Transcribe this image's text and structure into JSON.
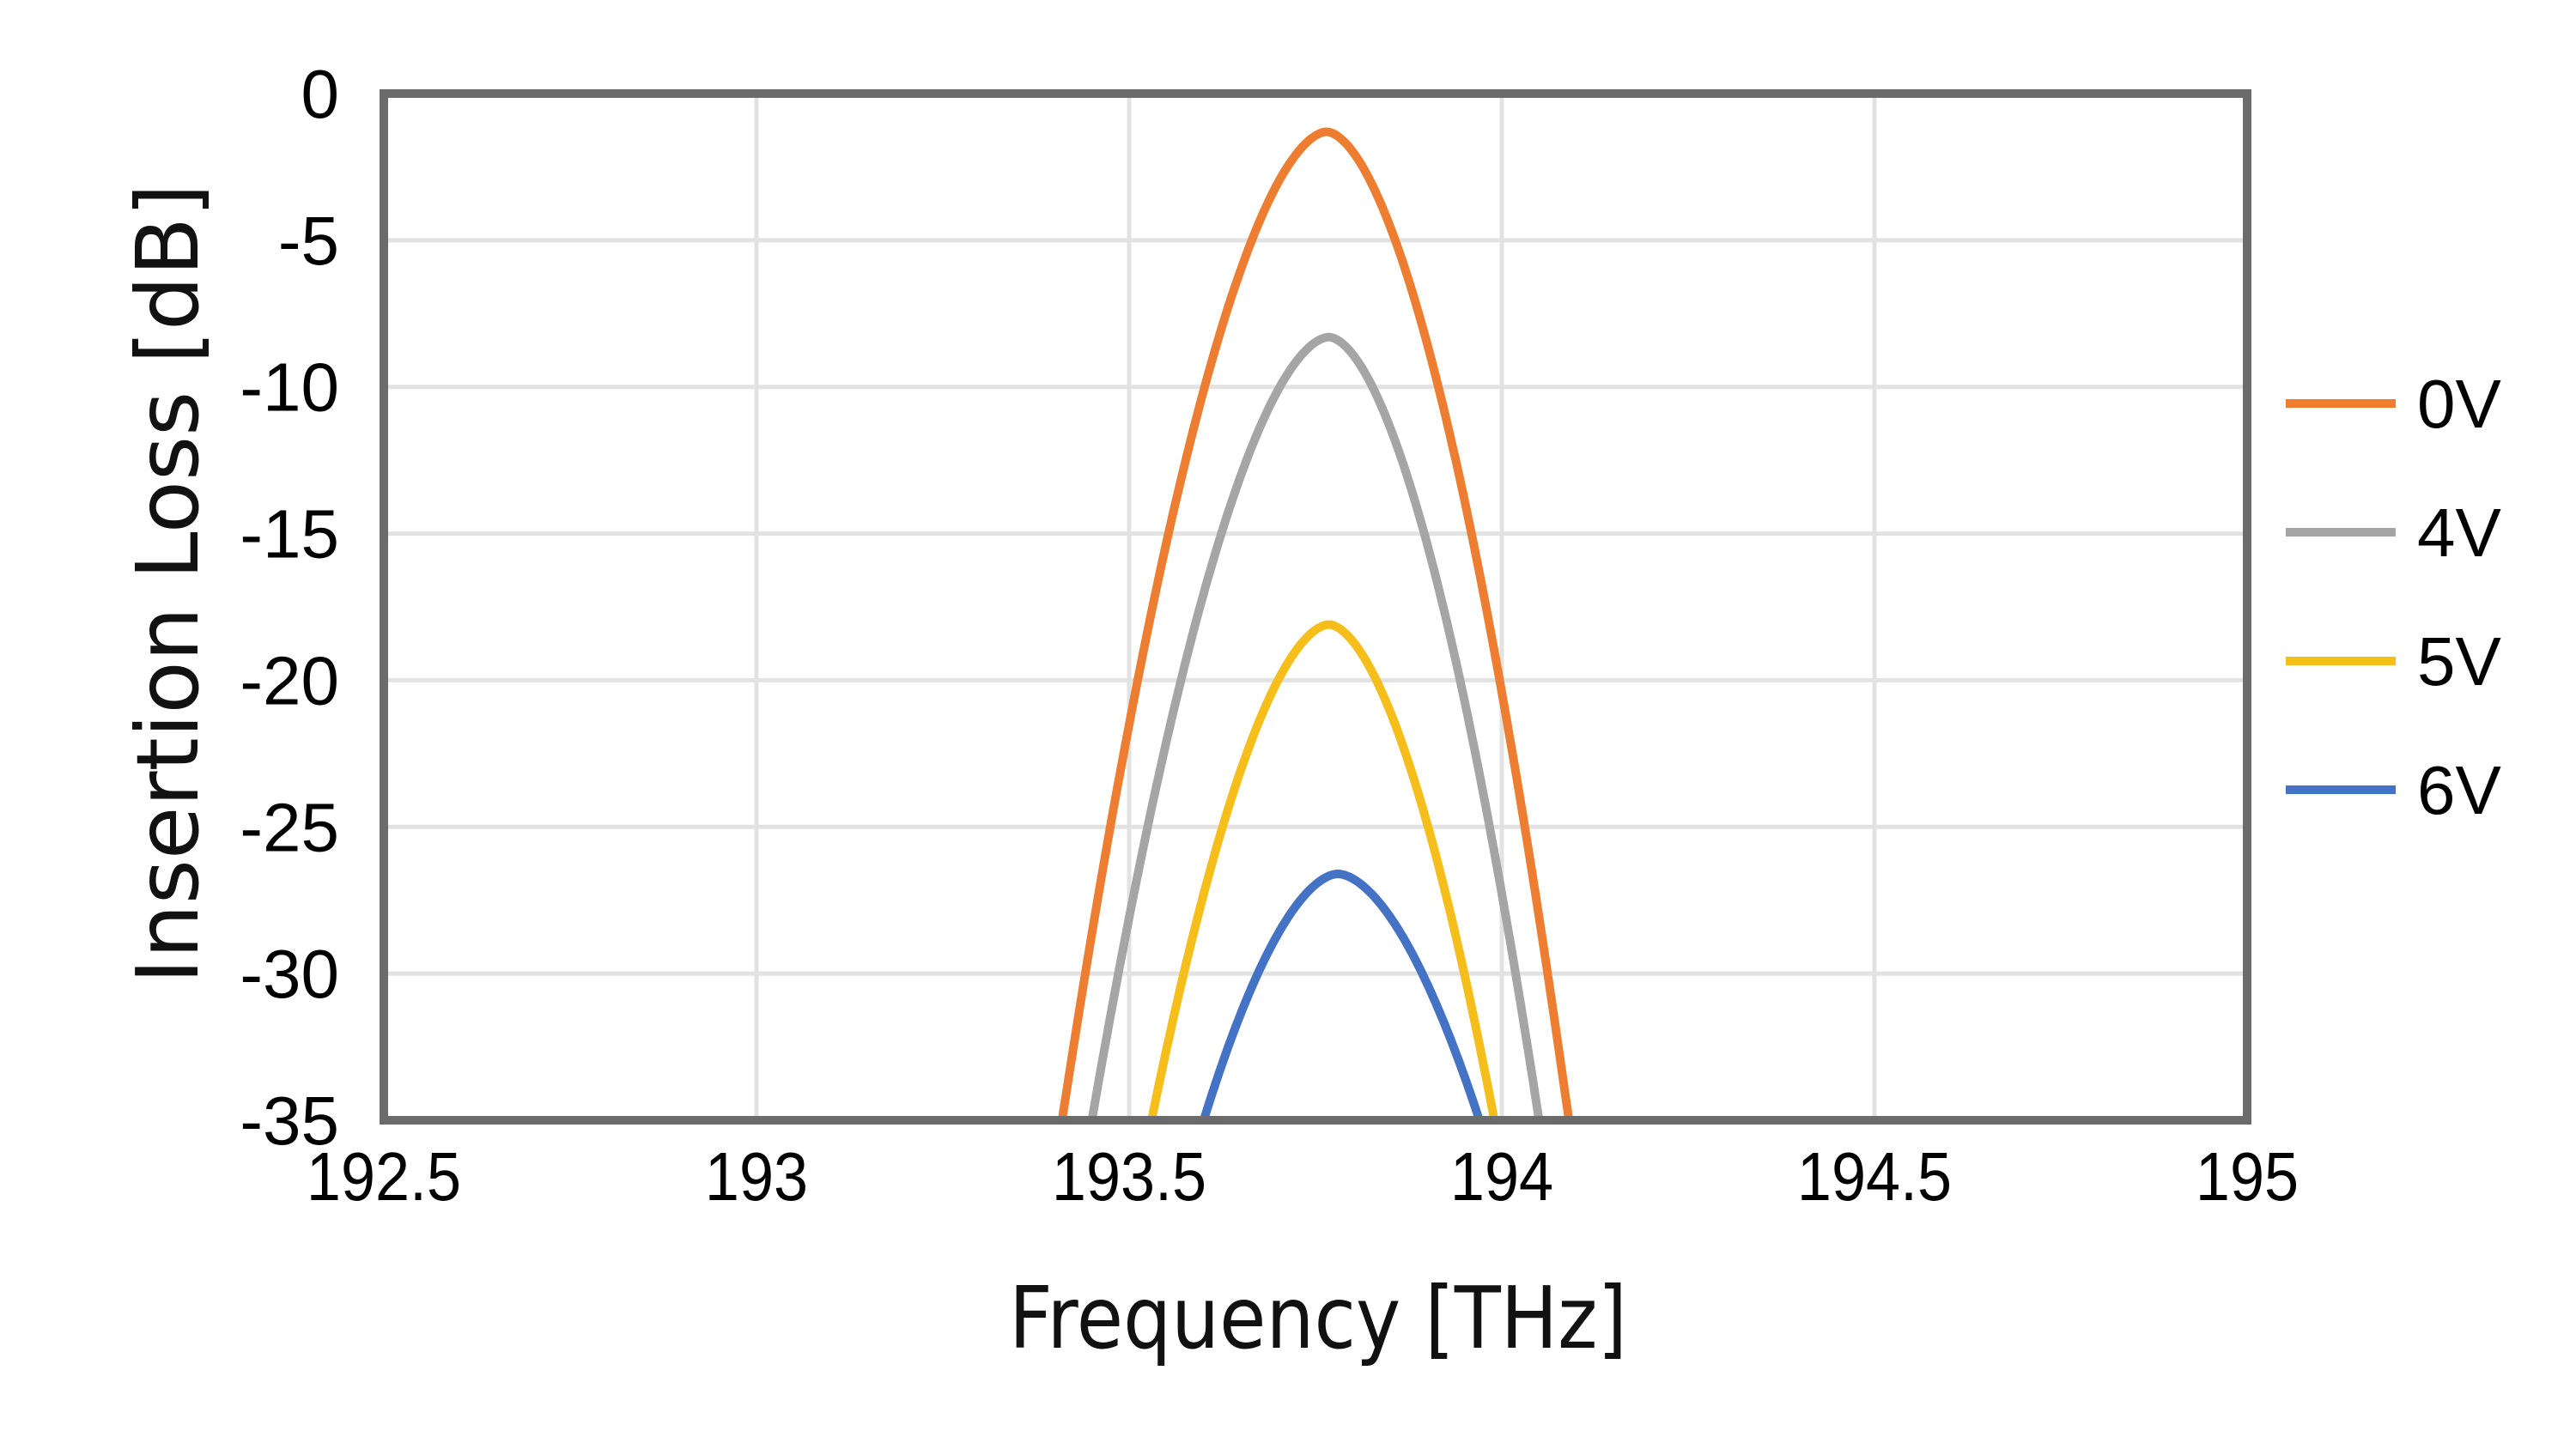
{
  "chart_data": {
    "type": "line",
    "title": "",
    "xlabel": "Frequency [THz]",
    "ylabel": "Insertion Loss [dB]",
    "xlim": [
      192.5,
      195
    ],
    "ylim": [
      -35,
      0
    ],
    "xticks": [
      192.5,
      193,
      193.5,
      194,
      194.5,
      195
    ],
    "xtick_labels": [
      "192.5",
      "193",
      "193.5",
      "194",
      "194.5",
      "195"
    ],
    "yticks": [
      0,
      -5,
      -10,
      -15,
      -20,
      -25,
      -30,
      -35
    ],
    "ytick_labels": [
      "0",
      "-5",
      "-10",
      "-15",
      "-20",
      "-25",
      "-30",
      "-35"
    ],
    "grid": true,
    "legend_position": "right",
    "series": [
      {
        "name": "0V",
        "color": "#ED7D31",
        "peak": {
          "x": 193.765,
          "y": -1.3
        },
        "points": [
          [
            193.41,
            -35
          ],
          [
            193.47,
            -25
          ],
          [
            193.49,
            -20
          ],
          [
            193.52,
            -15
          ],
          [
            193.56,
            -10
          ],
          [
            193.62,
            -5
          ],
          [
            193.68,
            -2.5
          ],
          [
            193.765,
            -1.3
          ],
          [
            193.85,
            -2.5
          ],
          [
            193.91,
            -5
          ],
          [
            193.96,
            -10
          ],
          [
            193.99,
            -15
          ],
          [
            194.02,
            -20
          ],
          [
            194.05,
            -25
          ],
          [
            194.09,
            -35
          ]
        ]
      },
      {
        "name": "4V",
        "color": "#A5A5A5",
        "peak": {
          "x": 193.768,
          "y": -8.3
        },
        "points": [
          [
            193.45,
            -35
          ],
          [
            193.5,
            -25
          ],
          [
            193.54,
            -20
          ],
          [
            193.6,
            -15
          ],
          [
            193.68,
            -10
          ],
          [
            193.768,
            -8.3
          ],
          [
            193.85,
            -10
          ],
          [
            193.93,
            -15
          ],
          [
            193.98,
            -20
          ],
          [
            194.01,
            -25
          ],
          [
            194.05,
            -35
          ]
        ]
      },
      {
        "name": "5V",
        "color": "#F5BE1A",
        "peak": {
          "x": 193.768,
          "y": -18.1
        },
        "points": [
          [
            193.53,
            -35
          ],
          [
            193.57,
            -27
          ],
          [
            193.61,
            -23
          ],
          [
            193.67,
            -20
          ],
          [
            193.768,
            -18.1
          ],
          [
            193.82,
            -19
          ],
          [
            193.82,
            -20
          ],
          [
            193.89,
            -23
          ],
          [
            193.94,
            -27
          ],
          [
            193.99,
            -35
          ]
        ]
      },
      {
        "name": "6V",
        "color": "#4472C4",
        "peak": {
          "x": 193.78,
          "y": -26.6
        },
        "points": [
          [
            193.6,
            -35
          ],
          [
            193.65,
            -31
          ],
          [
            193.71,
            -28
          ],
          [
            193.78,
            -26.6
          ],
          [
            193.84,
            -28
          ],
          [
            193.91,
            -31
          ],
          [
            193.97,
            -35
          ]
        ]
      }
    ]
  },
  "axes": {
    "xlabel": "Frequency [THz]",
    "ylabel": "Insertion Loss [dB]",
    "xtick_labels": [
      "192.5",
      "193",
      "193.5",
      "194",
      "194.5",
      "195"
    ],
    "ytick_labels": [
      "0",
      "-5",
      "-10",
      "-15",
      "-20",
      "-25",
      "-30",
      "-35"
    ]
  },
  "legend": {
    "items": [
      {
        "label": "0V",
        "color": "#ED7D31"
      },
      {
        "label": "4V",
        "color": "#A5A5A5"
      },
      {
        "label": "5V",
        "color": "#F5BE1A"
      },
      {
        "label": "6V",
        "color": "#4472C4"
      }
    ]
  },
  "style": {
    "frame_color": "#6B6B6B",
    "grid_color": "#E2E2E2"
  }
}
